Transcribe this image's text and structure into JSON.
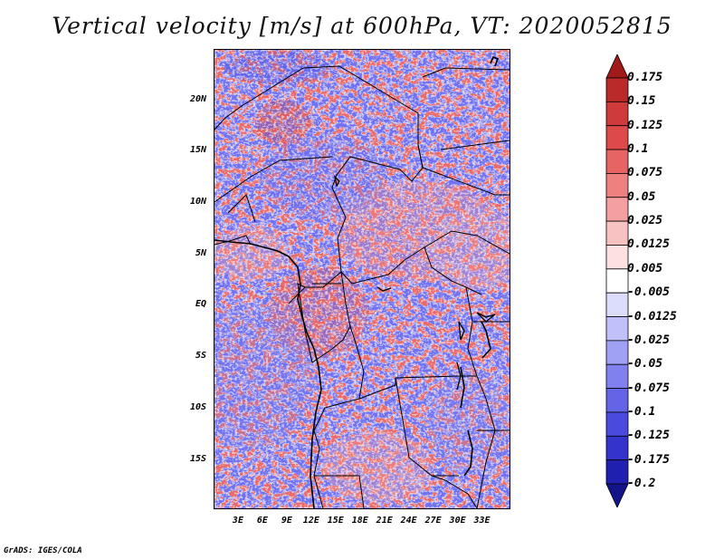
{
  "title": "Vertical velocity [m/s] at 600hPa, VT: 2020052815",
  "credit": "GrADS: IGES/COLA",
  "map": {
    "lat_labels": [
      "20N",
      "15N",
      "10N",
      "5N",
      "EQ",
      "5S",
      "10S",
      "15S"
    ],
    "lat_values": [
      20,
      15,
      10,
      5,
      0,
      -5,
      -10,
      -15
    ],
    "lon_labels": [
      "3E",
      "6E",
      "9E",
      "12E",
      "15E",
      "18E",
      "21E",
      "24E",
      "27E",
      "30E",
      "33E"
    ],
    "lon_values": [
      3,
      6,
      9,
      12,
      15,
      18,
      21,
      24,
      27,
      30,
      33
    ]
  },
  "colorbar": {
    "levels": [
      "0.175",
      "0.15",
      "0.125",
      "0.1",
      "0.075",
      "0.05",
      "0.025",
      "0.0125",
      "0.005",
      "-0.005",
      "-0.0125",
      "-0.025",
      "-0.05",
      "-0.075",
      "-0.1",
      "-0.125",
      "-0.175",
      "-0.2"
    ],
    "colors": [
      "#a11a1a",
      "#bb2a2a",
      "#cf3a3a",
      "#de4a4a",
      "#e76464",
      "#ef8080",
      "#f4a0a0",
      "#f9c2c2",
      "#fde0e0",
      "#ffffff",
      "#dcdcfd",
      "#c0c0fa",
      "#a0a0f4",
      "#8080ef",
      "#6464e7",
      "#4a4ade",
      "#3434cc",
      "#2020b0",
      "#14148a"
    ]
  }
}
